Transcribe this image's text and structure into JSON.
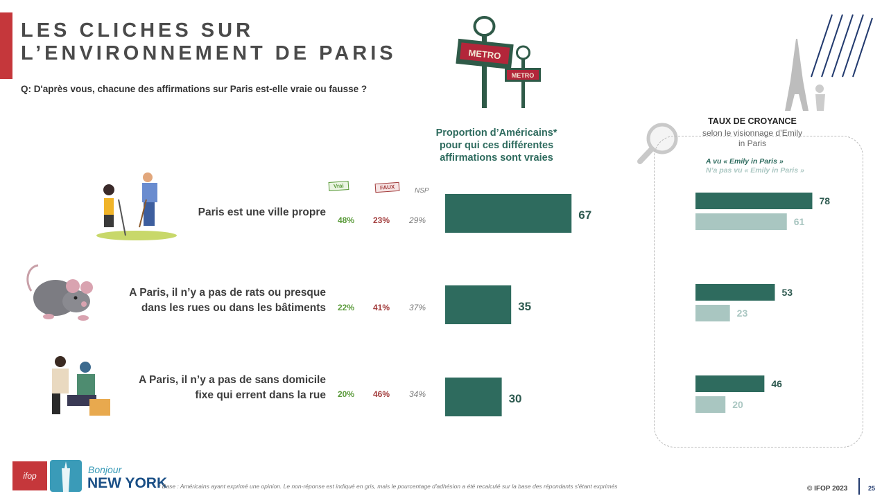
{
  "header": {
    "title_line1": "LES CLICHES SUR",
    "title_line2": "L’ENVIRONNEMENT DE PARIS",
    "question": "Q: D'après vous, chacune des affirmations sur Paris est-elle vraie ou fausse ?"
  },
  "columns": {
    "vrai_label": "Vrai",
    "faux_label": "FAUX",
    "nsp_label": "NSP",
    "bar_heading_1": "Proportion d’Américains*",
    "bar_heading_2": "pour qui ces différentes",
    "bar_heading_3": "affirmations sont vraies"
  },
  "statements": [
    {
      "line1": "Paris est une ville propre",
      "line2": "",
      "vrai": "48%",
      "faux": "23%",
      "nsp": "29%"
    },
    {
      "line1": "A Paris, il n’y a pas de rats ou presque",
      "line2": "dans les rues ou dans les bâtiments",
      "vrai": "22%",
      "faux": "41%",
      "nsp": "37%"
    },
    {
      "line1": "A Paris, il n’y a pas de sans domicile",
      "line2": "fixe qui errent dans la rue",
      "vrai": "20%",
      "faux": "46%",
      "nsp": "34%"
    }
  ],
  "croyance": {
    "title": "TAUX DE CROYANCE",
    "subtitle_1": "selon le visionnage d’Emily",
    "subtitle_2": "in Paris",
    "legend_seen": "A vu « Emily in Paris »",
    "legend_not_seen": "N’a pas vu « Emily in Paris »"
  },
  "illustrations": {
    "metro_sign_1": "METRO",
    "metro_sign_2": "METRO"
  },
  "footer": {
    "footnote": "* Base : Américains ayant exprimé une opinion. Le non-réponse est indiqué en gris, mais le pourcentage d'adhésion a été recalculé sur la base des répondants s'étant exprimés",
    "copyright": "© IFOP 2023",
    "page": "25",
    "logo_ifop": "ifop",
    "logo_bonjour": "Bonjour",
    "logo_newyork": "NEW YORK"
  },
  "colors": {
    "dark_teal": "#2e6b5e",
    "light_teal": "#a9c6c1",
    "vrai_green": "#5a9a3a",
    "faux_red": "#a23c3c",
    "accent_red": "#c5373b"
  },
  "chart_data": [
    {
      "type": "bar",
      "orientation": "horizontal",
      "title": "Proportion d’Américains* pour qui ces différentes affirmations sont vraies",
      "categories": [
        "Paris est une ville propre",
        "A Paris, il n’y a pas de rats ou presque dans les rues ou dans les bâtiments",
        "A Paris, il n’y a pas de sans domicile fixe qui errent dans la rue"
      ],
      "values": [
        67,
        35,
        30
      ],
      "xlim": [
        0,
        100
      ]
    },
    {
      "type": "bar",
      "orientation": "horizontal",
      "title": "TAUX DE CROYANCE",
      "categories": [
        "Paris est une ville propre",
        "A Paris, il n’y a pas de rats ou presque dans les rues ou dans les bâtiments",
        "A Paris, il n’y a pas de sans domicile fixe qui errent dans la rue"
      ],
      "series": [
        {
          "name": "A vu « Emily in Paris »",
          "values": [
            78,
            53,
            46
          ]
        },
        {
          "name": "N’a pas vu « Emily in Paris »",
          "values": [
            61,
            23,
            20
          ]
        }
      ],
      "xlim": [
        0,
        100
      ]
    }
  ]
}
